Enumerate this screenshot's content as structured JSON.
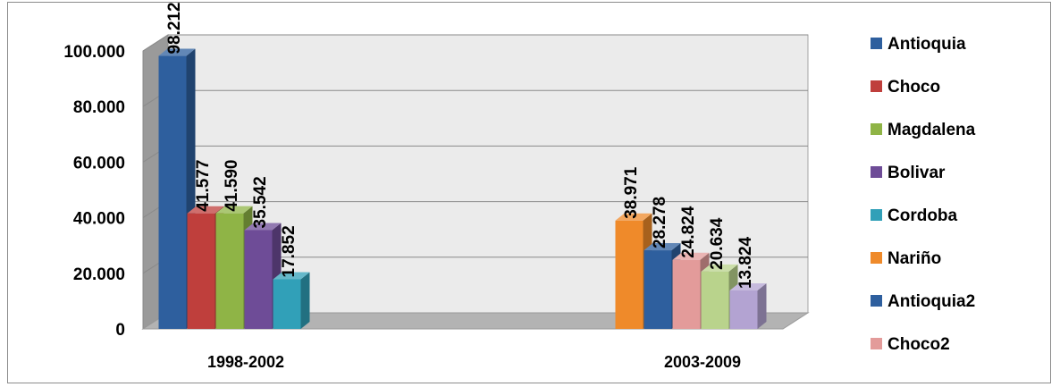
{
  "chart_data": {
    "type": "bar",
    "categories": [
      "1998-2002",
      "2003-2009"
    ],
    "ylim": [
      0,
      100000
    ],
    "yticks": [
      "0",
      "20.000",
      "40.000",
      "60.000",
      "80.000",
      "100.000"
    ],
    "grid": true,
    "legend_position": "right",
    "series": [
      {
        "name": "Antioquia",
        "color": "#2e5f9e",
        "category": "1998-2002",
        "value": 98212,
        "label": "98.212"
      },
      {
        "name": "Choco",
        "color": "#bf3f3c",
        "category": "1998-2002",
        "value": 41577,
        "label": "41.577"
      },
      {
        "name": "Magdalena",
        "color": "#8fb446",
        "category": "1998-2002",
        "value": 41590,
        "label": "41.590"
      },
      {
        "name": "Bolivar",
        "color": "#6e4c97",
        "category": "1998-2002",
        "value": 35542,
        "label": "35.542"
      },
      {
        "name": "Cordoba",
        "color": "#31a0b8",
        "category": "1998-2002",
        "value": 17852,
        "label": "17.852"
      },
      {
        "name": "Nariño",
        "color": "#ef8a2a",
        "category": "2003-2009",
        "value": 38971,
        "label": "38.971"
      },
      {
        "name": "Antioquia2",
        "color": "#2e5f9e",
        "category": "2003-2009",
        "value": 28278,
        "label": "28.278"
      },
      {
        "name": "Choco2",
        "color": "#e39b9a",
        "category": "2003-2009",
        "value": 24824,
        "label": "24.824"
      },
      {
        "label": "20.634",
        "color": "#b9d38c",
        "category": "2003-2009",
        "value": 20634
      },
      {
        "label": "13.824",
        "color": "#b3a3d2",
        "category": "2003-2009",
        "value": 13824
      }
    ]
  }
}
